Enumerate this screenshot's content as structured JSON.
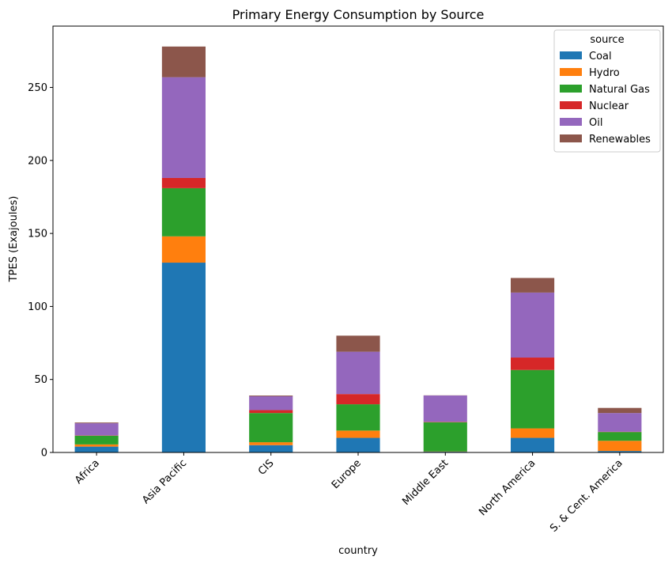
{
  "chart_data": {
    "type": "bar",
    "stacked": true,
    "title": "Primary Energy Consumption by Source",
    "xlabel": "country",
    "ylabel": "TPES (Exajoules)",
    "ylim": [
      0,
      292
    ],
    "yticks": [
      0,
      50,
      100,
      150,
      200,
      250
    ],
    "grid": false,
    "legend": {
      "title": "source",
      "placement": "top-right"
    },
    "categories": [
      "Africa",
      "Asia Pacific",
      "CIS",
      "Europe",
      "Middle East",
      "North America",
      "S. & Cent. America"
    ],
    "series": [
      {
        "name": "Coal",
        "color": "#1f77b4",
        "values": [
          4,
          130,
          5,
          10,
          0.5,
          10,
          1
        ]
      },
      {
        "name": "Hydro",
        "color": "#ff7f0e",
        "values": [
          1.5,
          18,
          2,
          5,
          0.2,
          6.5,
          7
        ]
      },
      {
        "name": "Natural Gas",
        "color": "#2ca02c",
        "values": [
          6,
          33,
          20,
          18,
          20,
          40,
          6
        ]
      },
      {
        "name": "Nuclear",
        "color": "#d62728",
        "values": [
          0.2,
          7,
          2,
          7,
          0.3,
          8.5,
          0.2
        ]
      },
      {
        "name": "Oil",
        "color": "#9467bd",
        "values": [
          8.3,
          69,
          9.5,
          29,
          18,
          44.5,
          12.8
        ]
      },
      {
        "name": "Renewables",
        "color": "#8c564b",
        "values": [
          0.5,
          21,
          0.5,
          11,
          0.1,
          10,
          3.5
        ]
      }
    ]
  }
}
